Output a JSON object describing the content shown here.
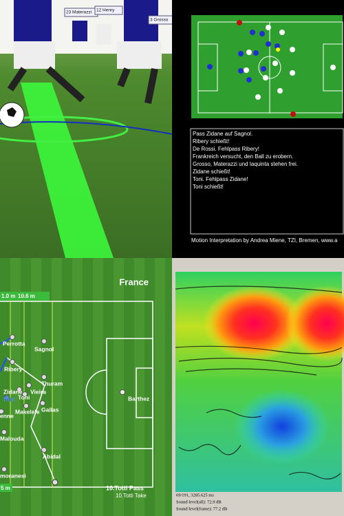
{
  "scene_3d": {
    "player_labels": [
      "23 Materazzi",
      "12 Henry",
      "3 Grosso"
    ]
  },
  "commentary": {
    "lines": [
      "Pass Zidane auf Sagnol.",
      "Ribery schießt!",
      "De Rossi. Fehlpass Ribery!",
      "Frankreich versucht, den Ball zu erobern.",
      "Grosso, Materazzi und Iaquinta stehen frei.",
      "Zidane schießt!",
      "Toni. Fehlpass Zidane!",
      "Toni schießt!"
    ],
    "credit": "Motion Interpretation by Andrea Miene, TZI, Bremen, www.a"
  },
  "tactics": {
    "team": "France",
    "distances": [
      "1.0 m",
      "10.6 m"
    ],
    "players": [
      "Perrotta",
      "Sagnol",
      "Ribery",
      "Thuram",
      "Zidane",
      "Totti",
      "Toni",
      "Vieira",
      "Makelele",
      "Gallas",
      "Barthez",
      "enne",
      "Malouda",
      "Abidal",
      "moranesi"
    ],
    "event_labels": [
      "10.Totti Pass",
      "10.Totti Take"
    ],
    "scale": "5 m"
  },
  "sound_map": {
    "status": [
      "69/191, 3285.625 ms",
      "Sound level(all): 72.9 dB",
      "Sound level(frame): 77.2 dB"
    ]
  }
}
